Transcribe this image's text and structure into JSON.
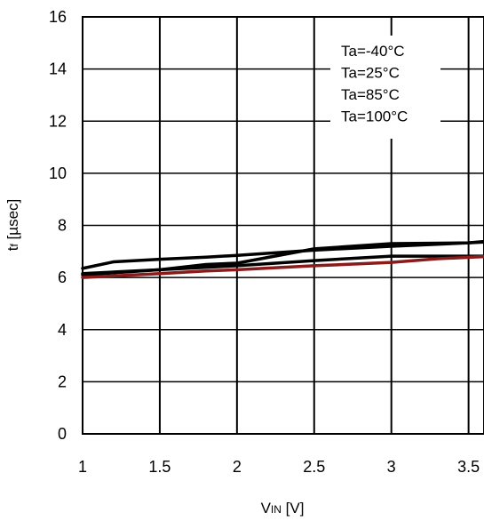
{
  "chart_data": {
    "type": "line",
    "xlabel": {
      "main": "V",
      "sub": "IN",
      "unit": " [V]"
    },
    "ylabel": {
      "main": "t",
      "sub": "f",
      "unit": " [µsec]"
    },
    "xlim": [
      1,
      3.6
    ],
    "ylim": [
      0,
      16
    ],
    "x_ticks": [
      1,
      1.5,
      2,
      2.5,
      3,
      3.5
    ],
    "x_tick_labels": [
      "1",
      "1.5",
      "2",
      "2.5",
      "3",
      "3.5"
    ],
    "y_ticks": [
      0,
      2,
      4,
      6,
      8,
      10,
      12,
      14,
      16
    ],
    "y_tick_labels": [
      "0",
      "2",
      "4",
      "6",
      "8",
      "10",
      "12",
      "14",
      "16"
    ],
    "grid": true,
    "legend_placement": "top-right",
    "series": [
      {
        "name": "Ta=-40°C",
        "color": "#000000",
        "x": [
          1,
          1.2,
          1.5,
          1.8,
          2,
          2.5,
          3,
          3.5,
          3.6
        ],
        "y": [
          6.35,
          6.6,
          6.7,
          6.78,
          6.85,
          7.05,
          7.2,
          7.33,
          7.38
        ]
      },
      {
        "name": "Ta=25°C",
        "color": "#000000",
        "x": [
          1,
          1.5,
          1.8,
          2,
          2.5,
          3,
          3.5,
          3.6
        ],
        "y": [
          6.1,
          6.3,
          6.5,
          6.55,
          7.1,
          7.3,
          7.33,
          7.36
        ]
      },
      {
        "name": "Ta=85°C",
        "color": "#000000",
        "x": [
          1,
          1.5,
          2,
          2.5,
          3,
          3.5,
          3.6
        ],
        "y": [
          6.15,
          6.3,
          6.45,
          6.65,
          6.82,
          6.82,
          6.82
        ]
      },
      {
        "name": "Ta=100°C",
        "color": "#8b1a1a",
        "x": [
          1,
          1.5,
          1.8,
          2,
          2.5,
          3,
          3.3,
          3.6
        ],
        "y": [
          6.0,
          6.15,
          6.25,
          6.3,
          6.45,
          6.58,
          6.72,
          6.8
        ]
      }
    ]
  }
}
